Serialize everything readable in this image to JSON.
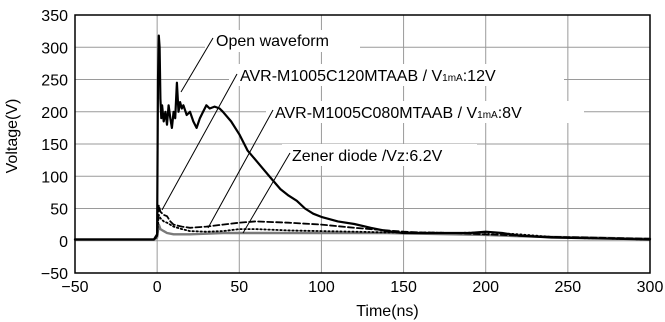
{
  "chart_data": {
    "type": "line",
    "title": "",
    "xlabel": "Time(ns)",
    "ylabel": "Voltage(V)",
    "xlim": [
      -50,
      300
    ],
    "ylim": [
      -50,
      350
    ],
    "xticks": [
      -50,
      0,
      50,
      100,
      150,
      200,
      250,
      300
    ],
    "yticks": [
      -50,
      0,
      50,
      100,
      150,
      200,
      250,
      300,
      350
    ],
    "xtick_labels": [
      "−50",
      "0",
      "50",
      "100",
      "150",
      "200",
      "250",
      "300"
    ],
    "ytick_labels": [
      "−50",
      "0",
      "50",
      "100",
      "150",
      "200",
      "250",
      "300",
      "350"
    ],
    "grid": true,
    "series": [
      {
        "name": "Open waveform",
        "style": "solid-bold",
        "color": "#000000",
        "x": [
          -50,
          -2,
          0,
          0.5,
          1,
          1.5,
          2,
          2.5,
          3,
          4,
          5,
          6,
          7,
          8,
          9,
          10,
          11,
          12,
          13,
          14,
          15,
          16,
          18,
          20,
          22,
          24,
          26,
          28,
          30,
          32,
          35,
          38,
          40,
          45,
          50,
          55,
          60,
          65,
          70,
          75,
          80,
          85,
          90,
          95,
          100,
          110,
          120,
          130,
          140,
          150,
          160,
          170,
          180,
          190,
          200,
          210,
          220,
          240,
          260,
          280,
          300
        ],
        "y": [
          2,
          2,
          10,
          250,
          318,
          300,
          220,
          190,
          210,
          185,
          200,
          180,
          210,
          190,
          175,
          200,
          190,
          245,
          200,
          215,
          205,
          210,
          195,
          200,
          185,
          175,
          190,
          200,
          210,
          205,
          208,
          205,
          200,
          185,
          165,
          140,
          125,
          110,
          95,
          80,
          70,
          62,
          50,
          42,
          37,
          30,
          26,
          20,
          15,
          12,
          12,
          12,
          12,
          12,
          14,
          12,
          8,
          5,
          4,
          3,
          2
        ]
      },
      {
        "name": "AVR-M1005C120MTAAB / V1mA:12V",
        "style": "dashed",
        "color": "#000000",
        "x": [
          -50,
          -2,
          0,
          1,
          2,
          4,
          6,
          8,
          10,
          15,
          20,
          30,
          40,
          50,
          60,
          80,
          100,
          120,
          140,
          150,
          160,
          180,
          200,
          220,
          240,
          260,
          280,
          300
        ],
        "y": [
          2,
          2,
          8,
          55,
          45,
          40,
          38,
          30,
          25,
          22,
          20,
          22,
          25,
          28,
          30,
          28,
          25,
          20,
          16,
          14,
          13,
          12,
          10,
          8,
          6,
          5,
          4,
          3
        ]
      },
      {
        "name": "AVR-M1005C080MTAAB / V1mA:8V",
        "style": "dotted",
        "color": "#000000",
        "x": [
          -50,
          -2,
          0,
          1,
          2,
          4,
          6,
          10,
          15,
          20,
          30,
          40,
          50,
          60,
          80,
          100,
          120,
          140,
          160,
          180,
          200,
          220,
          240,
          260,
          280,
          300
        ],
        "y": [
          2,
          2,
          6,
          40,
          35,
          30,
          28,
          22,
          18,
          15,
          14,
          15,
          18,
          18,
          16,
          15,
          14,
          13,
          13,
          12,
          13,
          10,
          6,
          4,
          3,
          2
        ]
      },
      {
        "name": "Zener diode /Vz:6.2V",
        "style": "solid-gray",
        "color": "#7a7a7a",
        "x": [
          -50,
          -2,
          0,
          1,
          2,
          4,
          6,
          10,
          20,
          30,
          40,
          60,
          80,
          100,
          120,
          140,
          160,
          180,
          200,
          220,
          240,
          260,
          280,
          300
        ],
        "y": [
          2,
          2,
          5,
          25,
          18,
          15,
          12,
          10,
          10,
          11,
          12,
          12,
          12,
          12,
          12,
          12,
          11,
          10,
          9,
          7,
          6,
          5,
          4,
          3
        ]
      }
    ],
    "annotations": [
      {
        "series": 0,
        "text": "Open waveform",
        "sub": "",
        "tail": ""
      },
      {
        "series": 1,
        "text": "AVR-M1005C120MTAAB / V",
        "sub": "1mA",
        "tail": ":12V"
      },
      {
        "series": 2,
        "text": "AVR-M1005C080MTAAB / V",
        "sub": "1mA",
        "tail": ":8V"
      },
      {
        "series": 3,
        "text": "Zener diode /Vz:6.2V",
        "sub": "",
        "tail": ""
      }
    ]
  }
}
